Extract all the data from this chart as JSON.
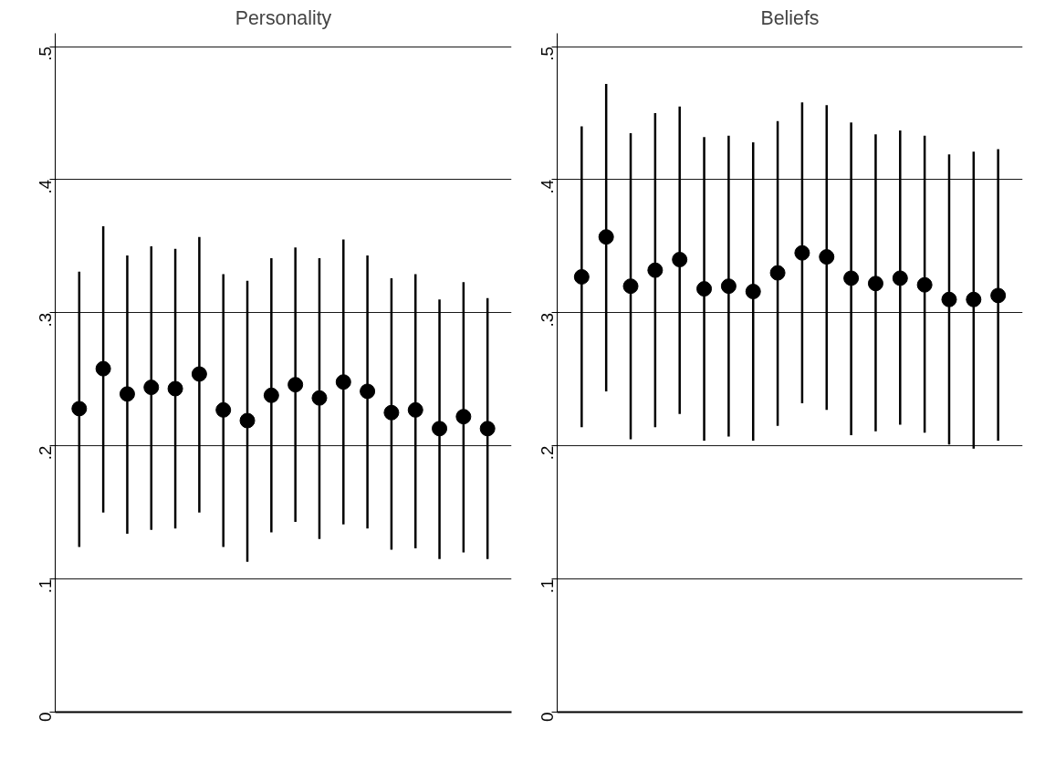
{
  "chart_data": [
    {
      "type": "scatter",
      "title": "Personality",
      "categories": [
        null,
        null,
        null,
        null,
        null,
        null,
        null,
        null,
        null,
        null,
        null,
        null,
        null,
        null,
        null,
        null,
        null,
        null
      ],
      "color": "#000000",
      "marker": "circle",
      "grid": "y",
      "tick_labels": "y",
      "ylim": [
        0,
        0.51
      ],
      "yticks": [
        0,
        {
          "value": 0.1,
          "label": ".1"
        },
        {
          "value": 0.2,
          "label": ".2"
        },
        {
          "value": 0.3,
          "label": ".3"
        },
        {
          "value": 0.4,
          "label": ".4"
        },
        {
          "value": 0.5,
          "label": ".5"
        }
      ],
      "values": [
        0.228,
        0.258,
        0.239,
        0.244,
        0.243,
        0.254,
        0.227,
        0.219,
        0.238,
        0.246,
        0.236,
        0.248,
        0.241,
        0.225,
        0.227,
        0.213,
        0.222,
        0.213
      ],
      "errors": [
        [
          0.124,
          0.331
        ],
        [
          0.15,
          0.365
        ],
        [
          0.134,
          0.343
        ],
        [
          0.137,
          0.35
        ],
        [
          0.138,
          0.348
        ],
        [
          0.15,
          0.357
        ],
        [
          0.124,
          0.329
        ],
        [
          0.113,
          0.324
        ],
        [
          0.135,
          0.341
        ],
        [
          0.143,
          0.349
        ],
        [
          0.13,
          0.341
        ],
        [
          0.141,
          0.355
        ],
        [
          0.138,
          0.343
        ],
        [
          0.122,
          0.326
        ],
        [
          0.123,
          0.329
        ],
        [
          0.115,
          0.31
        ],
        [
          0.12,
          0.323
        ],
        [
          0.115,
          0.311
        ]
      ]
    },
    {
      "type": "scatter",
      "title": "Beliefs",
      "categories": [
        null,
        null,
        null,
        null,
        null,
        null,
        null,
        null,
        null,
        null,
        null,
        null,
        null,
        null,
        null,
        null,
        null,
        null
      ],
      "color": "#000000",
      "marker": "circle",
      "grid": "y",
      "tick_labels": "y",
      "ylim": [
        0,
        0.51
      ],
      "yticks": [
        0,
        {
          "value": 0.1,
          "label": ".1"
        },
        {
          "value": 0.2,
          "label": ".2"
        },
        {
          "value": 0.3,
          "label": ".3"
        },
        {
          "value": 0.4,
          "label": ".4"
        },
        {
          "value": 0.5,
          "label": ".5"
        }
      ],
      "values": [
        0.327,
        0.357,
        0.32,
        0.332,
        0.34,
        0.318,
        0.32,
        0.316,
        0.33,
        0.345,
        0.342,
        0.326,
        0.322,
        0.326,
        0.321,
        0.31,
        0.31,
        0.313
      ],
      "errors": [
        [
          0.214,
          0.44
        ],
        [
          0.241,
          0.472
        ],
        [
          0.205,
          0.435
        ],
        [
          0.214,
          0.45
        ],
        [
          0.224,
          0.455
        ],
        [
          0.204,
          0.432
        ],
        [
          0.207,
          0.433
        ],
        [
          0.204,
          0.428
        ],
        [
          0.215,
          0.444
        ],
        [
          0.232,
          0.458
        ],
        [
          0.227,
          0.456
        ],
        [
          0.208,
          0.443
        ],
        [
          0.211,
          0.434
        ],
        [
          0.216,
          0.437
        ],
        [
          0.21,
          0.433
        ],
        [
          0.201,
          0.419
        ],
        [
          0.198,
          0.421
        ],
        [
          0.204,
          0.423
        ]
      ]
    }
  ]
}
